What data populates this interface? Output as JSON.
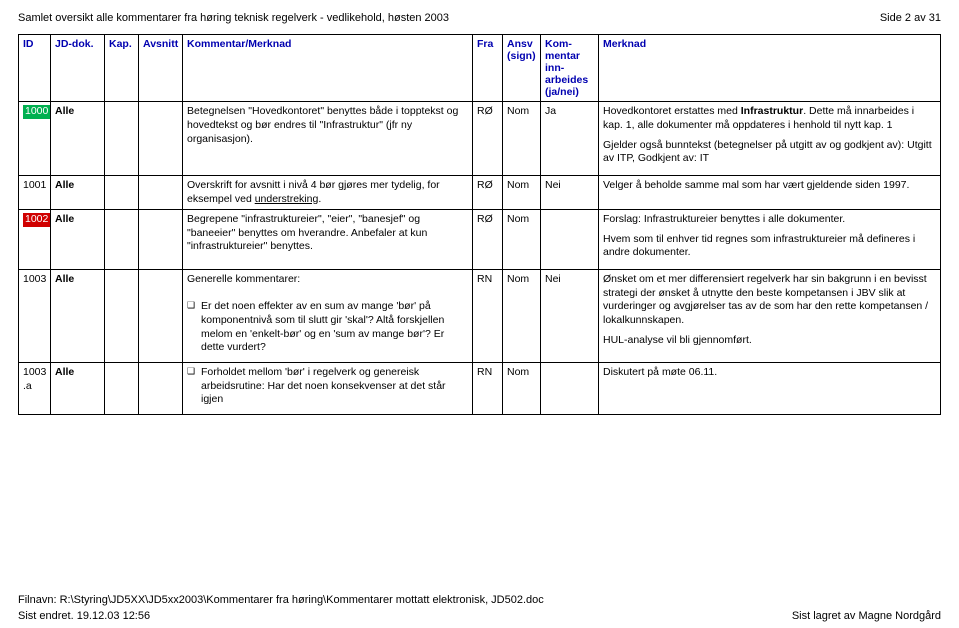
{
  "header": {
    "title": "Samlet oversikt alle kommentarer fra høring teknisk regelverk - vedlikehold, høsten 2003",
    "page": "Side 2 av 31"
  },
  "table": {
    "columns": {
      "id": "ID",
      "jd": "JD-dok.",
      "kap": "Kap.",
      "avsnitt": "Avsnitt",
      "kommentar": "Kommentar/Merknad",
      "fra": "Fra",
      "ansv": "Ansv (sign)",
      "inn": "Kom-mentar inn-arbeides (ja/nei)",
      "merknad": "Merknad"
    },
    "rows": [
      {
        "id": "1000",
        "id_hl": "green",
        "jd": "Alle",
        "kap": "",
        "avsnitt": "",
        "kommentar": "Betegnelsen \"Hovedkontoret\" benyttes både i topptekst og hovedtekst og bør endres til \"Infrastruktur\" (jfr ny organisasjon).",
        "fra": "RØ",
        "ansv": "Nom",
        "inn": "Ja",
        "merknad_blocks": [
          "Hovedkontoret erstattes med <b>Infrastruktur</b>. Dette må innarbeides i kap. 1, alle dokumenter må oppdateres i henhold til nytt kap. 1",
          "Gjelder også bunntekst (betegnelser på utgitt av og godkjent av): Utgitt av ITP, Godkjent av: IT"
        ]
      },
      {
        "id": "1001",
        "id_hl": "",
        "jd": "Alle",
        "kap": "",
        "avsnitt": "",
        "kommentar": "Overskrift for avsnitt i nivå 4 bør gjøres mer tydelig, for eksempel ved <u>understreking</u>.",
        "fra": "RØ",
        "ansv": "Nom",
        "inn": "Nei",
        "merknad_blocks": [
          "Velger å beholde samme mal som har vært gjeldende siden 1997."
        ]
      },
      {
        "id": "1002",
        "id_hl": "red",
        "jd": "Alle",
        "kap": "",
        "avsnitt": "",
        "kommentar": "Begrepene \"infrastruktureier\", \"eier\", \"banesjef\" og \"baneeier\" benyttes om hverandre. Anbefaler at kun \"infrastruktureier\" benyttes.",
        "fra": "RØ",
        "ansv": "Nom",
        "inn": "",
        "merknad_blocks": [
          "Forslag: Infrastruktureier benyttes i alle dokumenter.",
          "Hvem som til enhver tid regnes som infrastruktureier må defineres i andre dokumenter."
        ]
      },
      {
        "id": "1003",
        "id_hl": "",
        "jd": "Alle",
        "kap": "",
        "avsnitt": "",
        "kommentar_intro": "Generelle kommentarer:",
        "kommentar_bullets": [
          "Er det noen effekter av en sum av mange 'bør' på komponentnivå som til slutt gir 'skal'? Altå forskjellen melom en 'enkelt-bør' og en 'sum av mange bør'? Er dette vurdert?"
        ],
        "fra": "RN",
        "ansv": "Nom",
        "inn": "Nei",
        "merknad_blocks": [
          "Ønsket om et mer differensiert regelverk har sin bakgrunn i en bevisst strategi der ønsket å utnytte den beste kompetansen i JBV slik at vurderinger og avgjørelser tas av de som har den rette kompetansen / lokalkunnskapen.",
          "HUL-analyse vil bli gjennomført."
        ]
      },
      {
        "id": "1003.a",
        "id_hl": "",
        "jd": "Alle",
        "kap": "",
        "avsnitt": "",
        "kommentar_bullets": [
          "Forholdet mellom 'bør' i regelverk og genereisk arbeidsrutine: Har det noen konsekvenser at det står igjen"
        ],
        "fra": "RN",
        "ansv": "Nom",
        "inn": "",
        "merknad_blocks": [
          "Diskutert på møte 06.11."
        ]
      }
    ]
  },
  "footer": {
    "filepath": "Filnavn: R:\\Styring\\JD5XX\\JD5xx2003\\Kommentarer fra høring\\Kommentarer mottatt elektronisk, JD502.doc",
    "lastChanged": "Sist endret. 19.12.03 12:56",
    "lastSaved": "Sist lagret av Magne Nordgård"
  }
}
